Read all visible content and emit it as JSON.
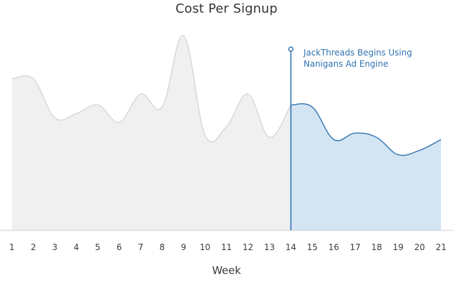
{
  "chart_data": {
    "type": "area",
    "title": "Cost Per Signup",
    "xlabel": "Week",
    "ylabel": "",
    "x": [
      1,
      2,
      3,
      4,
      5,
      6,
      7,
      8,
      9,
      10,
      11,
      12,
      13,
      14,
      15,
      16,
      17,
      18,
      19,
      20,
      21
    ],
    "values": [
      0.7,
      0.7,
      0.52,
      0.54,
      0.58,
      0.5,
      0.63,
      0.57,
      0.9,
      0.44,
      0.48,
      0.63,
      0.43,
      0.58,
      0.57,
      0.42,
      0.45,
      0.43,
      0.35,
      0.37,
      0.42
    ],
    "ylim": [
      0,
      1
    ],
    "grid": false,
    "annotation": {
      "x": 14,
      "lines": [
        "JackThreads Begins Using",
        "Nanigans Ad Engine"
      ]
    },
    "colors": {
      "before_fill": "#f0f0f1",
      "before_line": "#d6d6d8",
      "after_fill": "#d3e4f3",
      "after_line": "#2f73b0",
      "marker": "#2f73b0",
      "axis": "#cfcfcf"
    }
  }
}
